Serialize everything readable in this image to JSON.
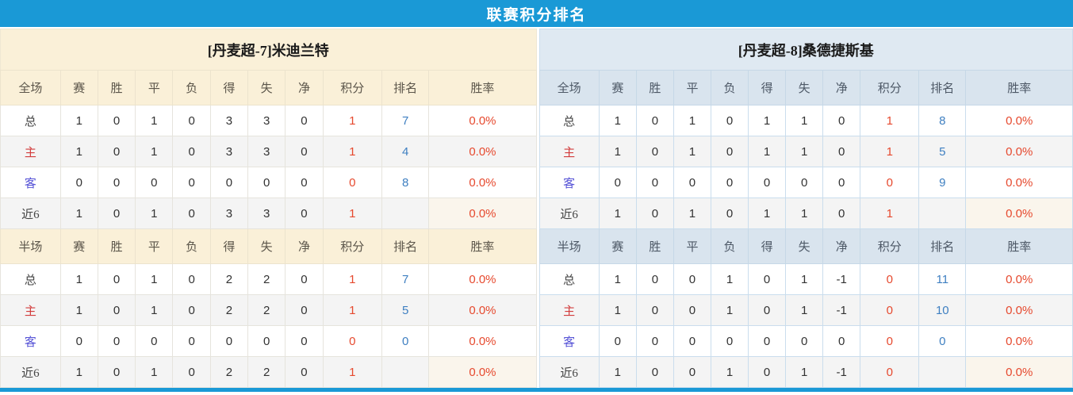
{
  "title": "联赛积分排名",
  "columns": [
    "赛",
    "胜",
    "平",
    "负",
    "得",
    "失",
    "净",
    "积分",
    "排名",
    "胜率"
  ],
  "colors": {
    "accent_blue": "#1a99d6",
    "points_red": "#e6492e",
    "rank_blue": "#3e7fc1",
    "home_label_red": "#d23c3c",
    "away_label_purple": "#5552d6",
    "left_header_bg": "#faf0d8",
    "right_header_bg": "#dfe9f2",
    "alt_row_bg": "#f4f4f4"
  },
  "tables": [
    {
      "team": "[丹麦超-7]米迪兰特",
      "sections": [
        {
          "scope_label": "全场",
          "rows": [
            {
              "type": "total",
              "label": "总",
              "stats": [
                "1",
                "0",
                "1",
                "0",
                "3",
                "3",
                "0"
              ],
              "points": "1",
              "rank": "7",
              "rate": "0.0%"
            },
            {
              "type": "home",
              "label": "主",
              "stats": [
                "1",
                "0",
                "1",
                "0",
                "3",
                "3",
                "0"
              ],
              "points": "1",
              "rank": "4",
              "rate": "0.0%"
            },
            {
              "type": "away",
              "label": "客",
              "stats": [
                "0",
                "0",
                "0",
                "0",
                "0",
                "0",
                "0"
              ],
              "points": "0",
              "rank": "8",
              "rate": "0.0%"
            },
            {
              "type": "recent",
              "label": "近6",
              "stats": [
                "1",
                "0",
                "1",
                "0",
                "3",
                "3",
                "0"
              ],
              "points": "1",
              "rank": "",
              "rate": "0.0%"
            }
          ]
        },
        {
          "scope_label": "半场",
          "rows": [
            {
              "type": "total",
              "label": "总",
              "stats": [
                "1",
                "0",
                "1",
                "0",
                "2",
                "2",
                "0"
              ],
              "points": "1",
              "rank": "7",
              "rate": "0.0%"
            },
            {
              "type": "home",
              "label": "主",
              "stats": [
                "1",
                "0",
                "1",
                "0",
                "2",
                "2",
                "0"
              ],
              "points": "1",
              "rank": "5",
              "rate": "0.0%"
            },
            {
              "type": "away",
              "label": "客",
              "stats": [
                "0",
                "0",
                "0",
                "0",
                "0",
                "0",
                "0"
              ],
              "points": "0",
              "rank": "0",
              "rate": "0.0%"
            },
            {
              "type": "recent",
              "label": "近6",
              "stats": [
                "1",
                "0",
                "1",
                "0",
                "2",
                "2",
                "0"
              ],
              "points": "1",
              "rank": "",
              "rate": "0.0%"
            }
          ]
        }
      ]
    },
    {
      "team": "[丹麦超-8]桑德捷斯基",
      "sections": [
        {
          "scope_label": "全场",
          "rows": [
            {
              "type": "total",
              "label": "总",
              "stats": [
                "1",
                "0",
                "1",
                "0",
                "1",
                "1",
                "0"
              ],
              "points": "1",
              "rank": "8",
              "rate": "0.0%"
            },
            {
              "type": "home",
              "label": "主",
              "stats": [
                "1",
                "0",
                "1",
                "0",
                "1",
                "1",
                "0"
              ],
              "points": "1",
              "rank": "5",
              "rate": "0.0%"
            },
            {
              "type": "away",
              "label": "客",
              "stats": [
                "0",
                "0",
                "0",
                "0",
                "0",
                "0",
                "0"
              ],
              "points": "0",
              "rank": "9",
              "rate": "0.0%"
            },
            {
              "type": "recent",
              "label": "近6",
              "stats": [
                "1",
                "0",
                "1",
                "0",
                "1",
                "1",
                "0"
              ],
              "points": "1",
              "rank": "",
              "rate": "0.0%"
            }
          ]
        },
        {
          "scope_label": "半场",
          "rows": [
            {
              "type": "total",
              "label": "总",
              "stats": [
                "1",
                "0",
                "0",
                "1",
                "0",
                "1",
                "-1"
              ],
              "points": "0",
              "rank": "11",
              "rate": "0.0%"
            },
            {
              "type": "home",
              "label": "主",
              "stats": [
                "1",
                "0",
                "0",
                "1",
                "0",
                "1",
                "-1"
              ],
              "points": "0",
              "rank": "10",
              "rate": "0.0%"
            },
            {
              "type": "away",
              "label": "客",
              "stats": [
                "0",
                "0",
                "0",
                "0",
                "0",
                "0",
                "0"
              ],
              "points": "0",
              "rank": "0",
              "rate": "0.0%"
            },
            {
              "type": "recent",
              "label": "近6",
              "stats": [
                "1",
                "0",
                "0",
                "1",
                "0",
                "1",
                "-1"
              ],
              "points": "0",
              "rank": "",
              "rate": "0.0%"
            }
          ]
        }
      ]
    }
  ]
}
